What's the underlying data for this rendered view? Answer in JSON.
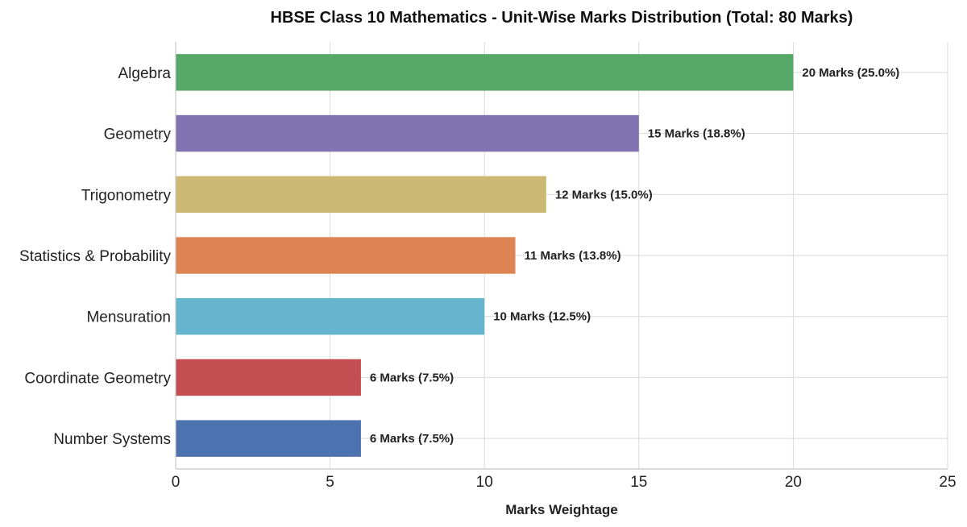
{
  "chart_data": {
    "type": "bar",
    "orientation": "horizontal",
    "title": "HBSE Class 10 Mathematics - Unit-Wise Marks Distribution (Total: 80 Marks)",
    "xlabel": "Marks Weightage",
    "ylabel": "",
    "xlim": [
      0,
      25
    ],
    "xticks": [
      0,
      5,
      10,
      15,
      20,
      25
    ],
    "grid": true,
    "categories": [
      "Algebra",
      "Geometry",
      "Trigonometry",
      "Statistics & Probability",
      "Mensuration",
      "Coordinate Geometry",
      "Number Systems"
    ],
    "values": [
      20,
      15,
      12,
      11,
      10,
      6,
      6
    ],
    "data_labels": [
      "20 Marks (25.0%)",
      "15 Marks (18.8%)",
      "12 Marks (15.0%)",
      "11 Marks (13.8%)",
      "10 Marks (12.5%)",
      "6 Marks (7.5%)",
      "6 Marks (7.5%)"
    ],
    "colors": [
      "#55a868",
      "#8172b2",
      "#ccb974",
      "#dd8452",
      "#64b5cd",
      "#c44e52",
      "#4c72b0"
    ]
  }
}
